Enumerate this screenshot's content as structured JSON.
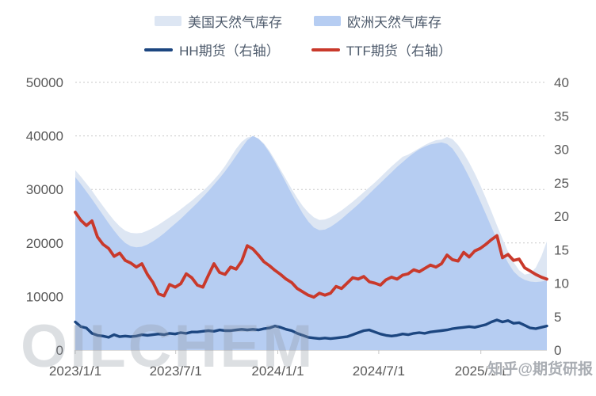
{
  "legend": {
    "us_label": "美国天然气库存",
    "eu_label": "欧洲天然气库存",
    "hh_label": "HH期货（右轴）",
    "ttf_label": "TTF期货（右轴）"
  },
  "watermarks": {
    "left": "OILCHEM",
    "right": "知乎@期货研报"
  },
  "colors": {
    "us_area": "#dde6f3",
    "eu_area": "#b6cdf2",
    "hh_line": "#1c4680",
    "ttf_line": "#c9392b",
    "grid": "#c9c9c9",
    "axis_text": "#595959"
  },
  "chart_data": {
    "type": "area",
    "title": "",
    "xlabel": "",
    "ylabel": "",
    "grid": "dashed horizontal",
    "legend_position": "top-center",
    "x": {
      "start_date": "2023-01-01",
      "step_days": 10,
      "points": 86
    },
    "x_ticks": [
      "2023/1/1",
      "2023/7/1",
      "2024/1/1",
      "2024/7/1",
      "2025/1/1"
    ],
    "x_tick_days": [
      0,
      181,
      365,
      547,
      731
    ],
    "left_axis": {
      "min": 0,
      "max": 50000,
      "ticks": [
        0,
        10000,
        20000,
        30000,
        40000,
        50000
      ]
    },
    "right_axis": {
      "min": 0,
      "max": 40,
      "ticks": [
        0,
        5,
        10,
        15,
        20,
        25,
        30,
        35,
        40
      ]
    },
    "series": [
      {
        "name": "美国天然气库存",
        "type": "area",
        "axis": "left",
        "color": "#dde6f3",
        "width": 0,
        "values": [
          33600,
          32400,
          31100,
          29800,
          28300,
          26900,
          25500,
          24200,
          23100,
          22300,
          21900,
          21800,
          21900,
          22300,
          22800,
          23400,
          24100,
          24800,
          25500,
          26300,
          27100,
          27900,
          28800,
          29700,
          30700,
          31800,
          33000,
          34400,
          36000,
          37600,
          38900,
          39700,
          39900,
          39500,
          38600,
          37200,
          35500,
          33700,
          31900,
          30100,
          28400,
          26900,
          25700,
          24800,
          24300,
          24400,
          24800,
          25400,
          26100,
          26900,
          27700,
          28600,
          29500,
          30400,
          31300,
          32300,
          33300,
          34300,
          35200,
          36100,
          36500,
          37100,
          37700,
          38300,
          38800,
          39200,
          39300,
          39800,
          39400,
          38300,
          36800,
          35000,
          33000,
          30800,
          28400,
          25900,
          23300,
          20800,
          18400,
          16400,
          14900,
          14100,
          14300,
          15400,
          17500,
          20300
        ]
      },
      {
        "name": "欧洲天然气库存",
        "type": "area",
        "axis": "left",
        "color": "#b6cdf2",
        "width": 0,
        "values": [
          32300,
          31000,
          29600,
          28200,
          26700,
          25200,
          23700,
          22300,
          21000,
          20000,
          19400,
          19200,
          19300,
          19700,
          20300,
          21000,
          21800,
          22700,
          23600,
          24500,
          25500,
          26500,
          27500,
          28600,
          29700,
          30900,
          32100,
          33400,
          34800,
          36300,
          37800,
          39200,
          40000,
          39500,
          38400,
          36900,
          35100,
          33200,
          31200,
          29200,
          27300,
          25500,
          24000,
          22900,
          22400,
          22500,
          23000,
          23700,
          24500,
          25400,
          26300,
          27200,
          28200,
          29200,
          30200,
          31200,
          32200,
          33200,
          34200,
          35100,
          36000,
          36800,
          37500,
          38000,
          38400,
          38600,
          38800,
          38500,
          37600,
          36100,
          34300,
          32300,
          30100,
          27800,
          25400,
          23000,
          20600,
          18300,
          16300,
          14700,
          13700,
          13100,
          12800,
          12700,
          12800,
          13000
        ]
      },
      {
        "name": "HH期货（右轴）",
        "type": "line",
        "axis": "right",
        "color": "#1c4680",
        "width": 3.4,
        "values": [
          4.2,
          3.5,
          3.3,
          2.5,
          2.2,
          2.1,
          1.9,
          2.3,
          2.0,
          2.1,
          2.0,
          2.1,
          2.3,
          2.2,
          2.3,
          2.4,
          2.3,
          2.5,
          2.4,
          2.6,
          2.5,
          2.7,
          2.7,
          2.8,
          2.9,
          2.8,
          3.0,
          2.9,
          2.9,
          3.0,
          3.1,
          3.0,
          3.1,
          3.0,
          3.2,
          3.3,
          3.6,
          3.4,
          3.1,
          2.9,
          2.5,
          2.2,
          1.9,
          1.8,
          1.7,
          1.8,
          1.7,
          1.8,
          1.9,
          2.0,
          2.3,
          2.6,
          2.9,
          3.0,
          2.7,
          2.4,
          2.2,
          2.1,
          2.2,
          2.4,
          2.3,
          2.5,
          2.6,
          2.5,
          2.7,
          2.8,
          2.9,
          3.0,
          3.2,
          3.3,
          3.4,
          3.5,
          3.4,
          3.6,
          3.8,
          4.2,
          4.5,
          4.2,
          4.4,
          4.0,
          4.1,
          3.7,
          3.3,
          3.2,
          3.4,
          3.6
        ]
      },
      {
        "name": "TTF期货（右轴）",
        "type": "line",
        "axis": "right",
        "color": "#c9392b",
        "width": 3.8,
        "values": [
          20.6,
          19.4,
          18.6,
          19.3,
          16.9,
          15.8,
          15.2,
          14.0,
          14.5,
          13.4,
          13.0,
          12.4,
          12.9,
          11.3,
          10.1,
          8.4,
          8.1,
          9.8,
          9.4,
          9.9,
          11.4,
          10.8,
          9.7,
          9.4,
          11.2,
          12.9,
          11.6,
          11.3,
          12.4,
          12.1,
          13.3,
          15.6,
          15.1,
          14.2,
          13.2,
          12.6,
          11.9,
          11.3,
          10.6,
          10.1,
          9.2,
          8.7,
          8.2,
          7.9,
          8.5,
          8.2,
          8.5,
          9.5,
          9.2,
          10.0,
          10.8,
          10.6,
          11.0,
          10.2,
          10.0,
          9.7,
          10.5,
          10.9,
          10.6,
          11.2,
          11.4,
          12.0,
          11.7,
          12.2,
          12.7,
          12.4,
          12.9,
          14.2,
          13.5,
          13.3,
          14.6,
          13.9,
          14.8,
          15.2,
          15.8,
          16.5,
          17.1,
          13.8,
          14.3,
          13.4,
          13.6,
          12.3,
          11.8,
          11.3,
          10.9,
          10.6
        ]
      }
    ]
  }
}
